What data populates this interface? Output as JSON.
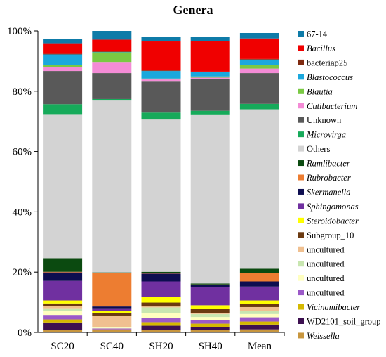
{
  "chart_data": {
    "type": "bar",
    "stacked": true,
    "percent": true,
    "title": "Genera",
    "xlabel": "",
    "ylabel": "",
    "ylim": [
      0,
      100
    ],
    "yticks": [
      "0%",
      "20%",
      "40%",
      "60%",
      "80%",
      "100%"
    ],
    "grid": false,
    "legend_position": "right",
    "categories": [
      "SC20",
      "SC40",
      "SH20",
      "SH40",
      "Mean"
    ],
    "series": [
      {
        "name": "Weissella",
        "italic": true,
        "color": "#C8963E",
        "values": [
          0.8,
          0.7,
          0.8,
          0.9,
          1.0
        ]
      },
      {
        "name": "WD2101_soil_group",
        "italic": false,
        "color": "#3D1050",
        "values": [
          2.5,
          0.0,
          1.4,
          0.9,
          1.6
        ]
      },
      {
        "name": "Vicinamibacter",
        "italic": true,
        "color": "#D4B800",
        "values": [
          1.0,
          0.3,
          1.2,
          1.1,
          1.0
        ]
      },
      {
        "name": "uncultured",
        "italic": false,
        "color": "#9B59C8",
        "values": [
          1.5,
          0.3,
          1.5,
          1.3,
          1.4
        ]
      },
      {
        "name": "uncultured",
        "italic": false,
        "color": "#FFFFC0",
        "values": [
          1.2,
          0.3,
          1.6,
          0.9,
          1.1
        ]
      },
      {
        "name": "uncultured",
        "italic": false,
        "color": "#C8E6B0",
        "values": [
          1.0,
          0.2,
          1.8,
          1.0,
          1.1
        ]
      },
      {
        "name": "uncultured",
        "italic": false,
        "color": "#F0C090",
        "values": [
          0.8,
          3.8,
          0.3,
          0.4,
          1.2
        ]
      },
      {
        "name": "Subgroup_10",
        "italic": false,
        "color": "#6B3A10",
        "values": [
          0.8,
          0.9,
          1.3,
          1.2,
          1.0
        ]
      },
      {
        "name": "Steroidobacter",
        "italic": true,
        "color": "#FFFF00",
        "values": [
          1.0,
          0.5,
          1.8,
          1.3,
          1.2
        ]
      },
      {
        "name": "Sphingomonas",
        "italic": true,
        "color": "#7030A0",
        "values": [
          6.5,
          1.0,
          5.2,
          6.0,
          4.6
        ]
      },
      {
        "name": "Skermanella",
        "italic": true,
        "color": "#0D0D50",
        "values": [
          2.8,
          0.6,
          2.6,
          0.8,
          1.7
        ]
      },
      {
        "name": "Rubrobacter",
        "italic": true,
        "color": "#ED7D31",
        "values": [
          0.2,
          11.0,
          0.2,
          0.1,
          2.9
        ]
      },
      {
        "name": "Ramlibacter",
        "italic": true,
        "color": "#0B4A10",
        "values": [
          4.5,
          0.3,
          0.4,
          0.3,
          1.3
        ]
      },
      {
        "name": "Others",
        "italic": false,
        "color": "#D3D3D3",
        "values": [
          47.8,
          57.0,
          50.5,
          56.1,
          52.9
        ]
      },
      {
        "name": "Microvirga",
        "italic": true,
        "color": "#16AA5A",
        "values": [
          3.3,
          0.5,
          2.3,
          1.2,
          1.8
        ]
      },
      {
        "name": "Unknown",
        "italic": false,
        "color": "#595959",
        "values": [
          11.0,
          8.6,
          10.5,
          10.5,
          10.2
        ]
      },
      {
        "name": "Cutibacterium",
        "italic": true,
        "color": "#F48BD6",
        "values": [
          1.3,
          3.7,
          0.5,
          0.5,
          1.5
        ]
      },
      {
        "name": "Blautia",
        "italic": true,
        "color": "#7AC943",
        "values": [
          0.8,
          3.2,
          0.3,
          0.4,
          1.2
        ]
      },
      {
        "name": "Blastococcus",
        "italic": true,
        "color": "#1BA8DD",
        "values": [
          3.4,
          0.1,
          2.5,
          1.4,
          1.8
        ]
      },
      {
        "name": "bacteriap25",
        "italic": false,
        "color": "#7F2A10",
        "values": [
          0.2,
          0.2,
          0.2,
          0.2,
          0.2
        ]
      },
      {
        "name": "Bacillus",
        "italic": true,
        "color": "#F00000",
        "values": [
          3.5,
          3.9,
          9.6,
          10.0,
          6.8
        ]
      },
      {
        "name": "67-14",
        "italic": false,
        "color": "#0E7BA8",
        "values": [
          1.4,
          2.9,
          1.5,
          1.6,
          1.8
        ]
      }
    ]
  }
}
